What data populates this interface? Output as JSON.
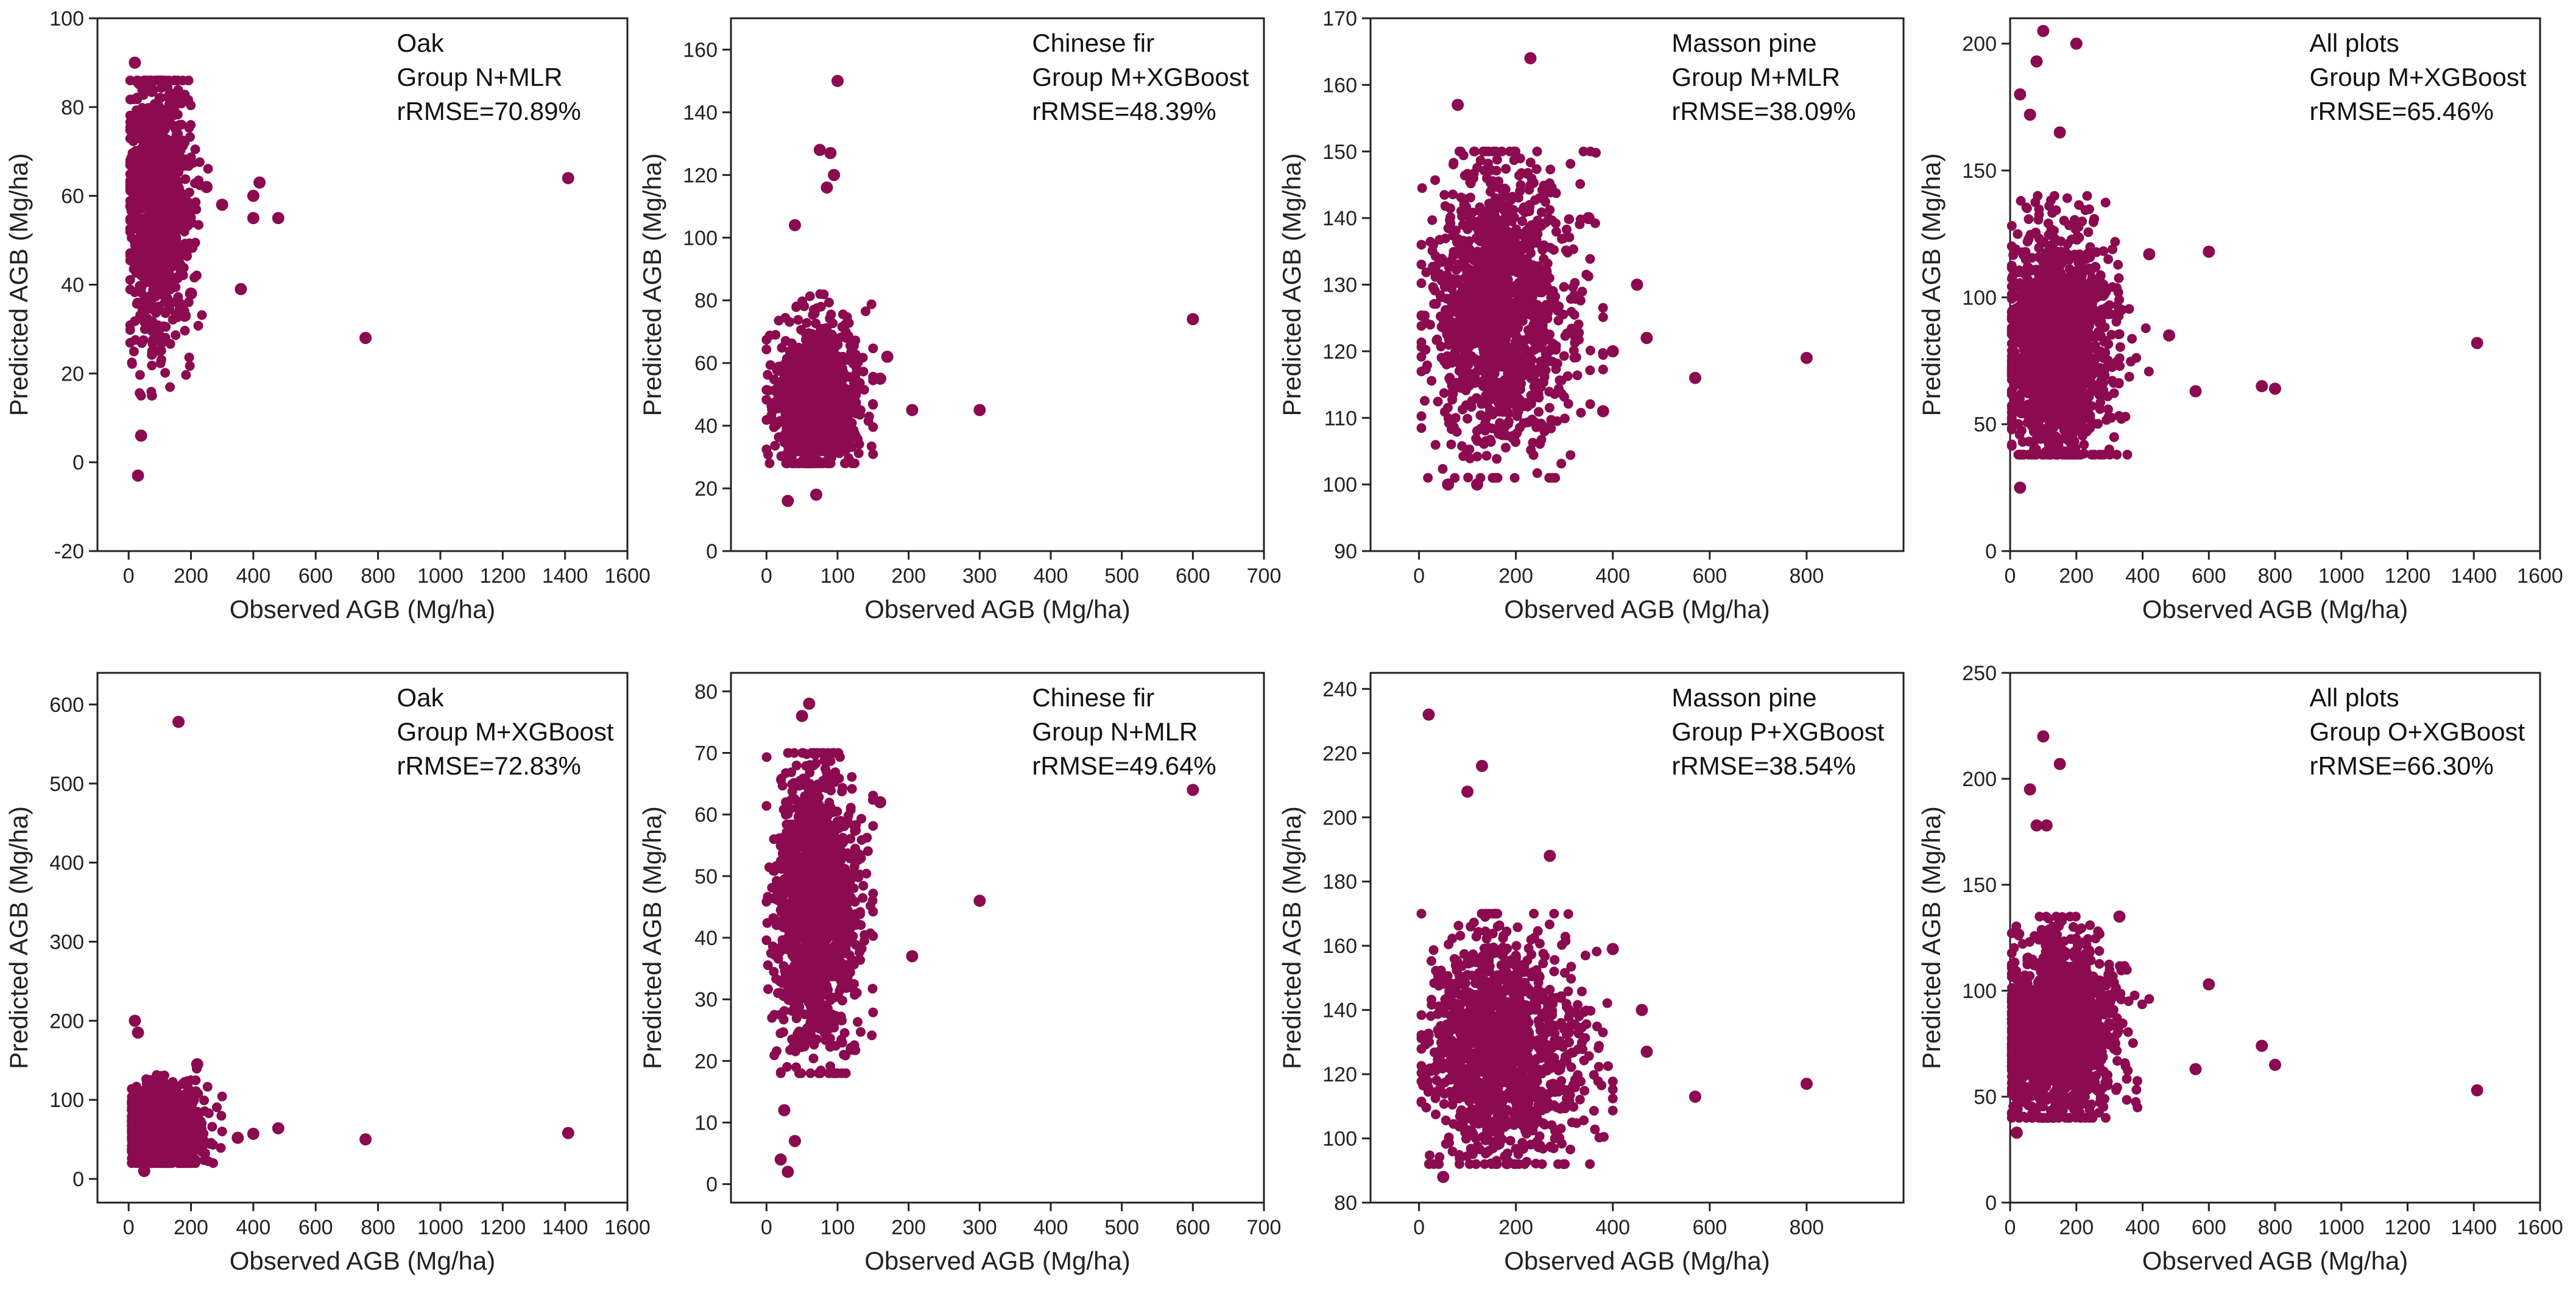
{
  "colors": {
    "marker": "#8b0a50",
    "axis": "#222222"
  },
  "chart_data": [
    {
      "type": "scatter",
      "panel": "top-1",
      "annotation": [
        "Oak",
        "Group N+MLR",
        "rRMSE=70.89%"
      ],
      "xlabel": "Observed AGB (Mg/ha)",
      "ylabel": "Predicted AGB (Mg/ha)",
      "xlim": [
        -100,
        1600
      ],
      "ylim": [
        -20,
        100
      ],
      "xticks": [
        0,
        200,
        400,
        600,
        800,
        1000,
        1200,
        1400,
        1600
      ],
      "yticks": [
        -20,
        0,
        20,
        40,
        60,
        80,
        100
      ],
      "cluster": {
        "xmin": 5,
        "xmax": 260,
        "ymin": 15,
        "ymax": 86,
        "xcenter": 70,
        "ycenter": 58,
        "n": 1100
      },
      "points": [
        [
          20,
          90
        ],
        [
          30,
          -3
        ],
        [
          40,
          6
        ],
        [
          400,
          60
        ],
        [
          420,
          63
        ],
        [
          480,
          55
        ],
        [
          400,
          55
        ],
        [
          360,
          39
        ],
        [
          760,
          28
        ],
        [
          1410,
          64
        ],
        [
          250,
          62
        ],
        [
          300,
          58
        ],
        [
          200,
          38
        ],
        [
          180,
          33
        ]
      ]
    },
    {
      "type": "scatter",
      "panel": "top-2",
      "annotation": [
        "Chinese fir",
        "Group M+XGBoost",
        "rRMSE=48.39%"
      ],
      "xlabel": "Observed AGB (Mg/ha)",
      "ylabel": "Predicted AGB (Mg/ha)",
      "xlim": [
        -50,
        700
      ],
      "ylim": [
        0,
        170
      ],
      "xticks": [
        0,
        100,
        200,
        300,
        400,
        500,
        600,
        700
      ],
      "yticks": [
        0,
        20,
        40,
        60,
        80,
        100,
        120,
        140,
        160
      ],
      "cluster": {
        "xmin": 0,
        "xmax": 150,
        "ymin": 28,
        "ymax": 82,
        "xcenter": 55,
        "ycenter": 48,
        "n": 1100
      },
      "points": [
        [
          100,
          150
        ],
        [
          75,
          128
        ],
        [
          90,
          127
        ],
        [
          95,
          120
        ],
        [
          85,
          116
        ],
        [
          40,
          104
        ],
        [
          205,
          45
        ],
        [
          300,
          45
        ],
        [
          600,
          74
        ],
        [
          170,
          62
        ],
        [
          160,
          55
        ],
        [
          30,
          16
        ],
        [
          70,
          18
        ]
      ]
    },
    {
      "type": "scatter",
      "panel": "top-3",
      "annotation": [
        "Masson pine",
        "Group M+MLR",
        "rRMSE=38.09%"
      ],
      "xlabel": "Observed AGB (Mg/ha)",
      "ylabel": "Predicted AGB (Mg/ha)",
      "xlim": [
        -100,
        1000
      ],
      "ylim": [
        90,
        170
      ],
      "xticks": [
        0,
        200,
        400,
        600,
        800
      ],
      "yticks": [
        90,
        100,
        110,
        120,
        130,
        140,
        150,
        160,
        170
      ],
      "cluster": {
        "xmin": 5,
        "xmax": 380,
        "ymin": 101,
        "ymax": 150,
        "xcenter": 130,
        "ycenter": 127,
        "n": 1400
      },
      "points": [
        [
          230,
          164
        ],
        [
          80,
          157
        ],
        [
          570,
          116
        ],
        [
          800,
          119
        ],
        [
          470,
          122
        ],
        [
          380,
          111
        ],
        [
          450,
          130
        ],
        [
          400,
          120
        ],
        [
          60,
          100
        ],
        [
          120,
          100
        ],
        [
          350,
          140
        ]
      ]
    },
    {
      "type": "scatter",
      "panel": "top-4",
      "annotation": [
        "All plots",
        "Group M+XGBoost",
        "rRMSE=65.46%"
      ],
      "xlabel": "Observed AGB (Mg/ha)",
      "ylabel": "Predicted AGB (Mg/ha)",
      "xlim": [
        0,
        1600
      ],
      "ylim": [
        0,
        210
      ],
      "xticks": [
        0,
        200,
        400,
        600,
        800,
        1000,
        1200,
        1400,
        1600
      ],
      "yticks": [
        0,
        50,
        100,
        150,
        200
      ],
      "cluster": {
        "xmin": 5,
        "xmax": 420,
        "ymin": 38,
        "ymax": 140,
        "xcenter": 100,
        "ycenter": 82,
        "n": 1500
      },
      "points": [
        [
          100,
          205
        ],
        [
          200,
          200
        ],
        [
          80,
          193
        ],
        [
          30,
          180
        ],
        [
          60,
          172
        ],
        [
          150,
          165
        ],
        [
          600,
          118
        ],
        [
          560,
          63
        ],
        [
          760,
          65
        ],
        [
          800,
          64
        ],
        [
          1410,
          82
        ],
        [
          30,
          25
        ],
        [
          420,
          117
        ],
        [
          480,
          85
        ]
      ]
    },
    {
      "type": "scatter",
      "panel": "bottom-1",
      "annotation": [
        "Oak",
        "Group M+XGBoost",
        "rRMSE=72.83%"
      ],
      "xlabel": "Observed AGB (Mg/ha)",
      "ylabel": "Predicted AGB (Mg/ha)",
      "xlim": [
        -100,
        1600
      ],
      "ylim": [
        -30,
        640
      ],
      "xticks": [
        0,
        200,
        400,
        600,
        800,
        1000,
        1200,
        1400,
        1600
      ],
      "yticks": [
        0,
        100,
        200,
        300,
        400,
        500,
        600
      ],
      "cluster": {
        "xmin": 10,
        "xmax": 300,
        "ymin": 20,
        "ymax": 150,
        "xcenter": 80,
        "ycenter": 65,
        "n": 1100
      },
      "points": [
        [
          160,
          578
        ],
        [
          20,
          200
        ],
        [
          30,
          185
        ],
        [
          220,
          145
        ],
        [
          480,
          64
        ],
        [
          400,
          57
        ],
        [
          350,
          52
        ],
        [
          760,
          50
        ],
        [
          1410,
          58
        ],
        [
          50,
          10
        ]
      ]
    },
    {
      "type": "scatter",
      "panel": "bottom-2",
      "annotation": [
        "Chinese fir",
        "Group N+MLR",
        "rRMSE=49.64%"
      ],
      "xlabel": "Observed AGB (Mg/ha)",
      "ylabel": "Predicted AGB (Mg/ha)",
      "xlim": [
        -50,
        700
      ],
      "ylim": [
        -3,
        83
      ],
      "xticks": [
        0,
        100,
        200,
        300,
        400,
        500,
        600,
        700
      ],
      "yticks": [
        0,
        10,
        20,
        30,
        40,
        50,
        60,
        70,
        80
      ],
      "cluster": {
        "xmin": 0,
        "xmax": 150,
        "ymin": 18,
        "ymax": 70,
        "xcenter": 55,
        "ycenter": 45,
        "n": 1300
      },
      "points": [
        [
          60,
          78
        ],
        [
          50,
          76
        ],
        [
          205,
          37
        ],
        [
          300,
          46
        ],
        [
          600,
          64
        ],
        [
          30,
          2
        ],
        [
          20,
          4
        ],
        [
          40,
          7
        ],
        [
          25,
          12
        ],
        [
          160,
          62
        ],
        [
          120,
          22
        ]
      ]
    },
    {
      "type": "scatter",
      "panel": "bottom-3",
      "annotation": [
        "Masson pine",
        "Group P+XGBoost",
        "rRMSE=38.54%"
      ],
      "xlabel": "Observed AGB (Mg/ha)",
      "ylabel": "Predicted AGB (Mg/ha)",
      "xlim": [
        -100,
        1000
      ],
      "ylim": [
        80,
        245
      ],
      "xticks": [
        0,
        200,
        400,
        600,
        800
      ],
      "yticks": [
        80,
        100,
        120,
        140,
        160,
        180,
        200,
        220,
        240
      ],
      "cluster": {
        "xmin": 5,
        "xmax": 400,
        "ymin": 92,
        "ymax": 170,
        "xcenter": 130,
        "ycenter": 127,
        "n": 1400
      },
      "points": [
        [
          20,
          232
        ],
        [
          130,
          216
        ],
        [
          100,
          208
        ],
        [
          570,
          113
        ],
        [
          800,
          117
        ],
        [
          470,
          127
        ],
        [
          460,
          140
        ],
        [
          270,
          188
        ],
        [
          50,
          88
        ],
        [
          400,
          159
        ]
      ]
    },
    {
      "type": "scatter",
      "panel": "bottom-4",
      "annotation": [
        "All plots",
        "Group O+XGBoost",
        "rRMSE=66.30%"
      ],
      "xlabel": "Observed AGB (Mg/ha)",
      "ylabel": "Predicted AGB (Mg/ha)",
      "xlim": [
        0,
        1600
      ],
      "ylim": [
        0,
        250
      ],
      "xticks": [
        0,
        200,
        400,
        600,
        800,
        1000,
        1200,
        1400,
        1600
      ],
      "yticks": [
        0,
        50,
        100,
        150,
        200,
        250
      ],
      "cluster": {
        "xmin": 5,
        "xmax": 420,
        "ymin": 40,
        "ymax": 135,
        "xcenter": 100,
        "ycenter": 80,
        "n": 1500
      },
      "points": [
        [
          100,
          220
        ],
        [
          150,
          207
        ],
        [
          60,
          195
        ],
        [
          80,
          178
        ],
        [
          110,
          178
        ],
        [
          600,
          103
        ],
        [
          560,
          63
        ],
        [
          760,
          74
        ],
        [
          800,
          65
        ],
        [
          1410,
          53
        ],
        [
          20,
          33
        ],
        [
          330,
          135
        ]
      ]
    }
  ]
}
